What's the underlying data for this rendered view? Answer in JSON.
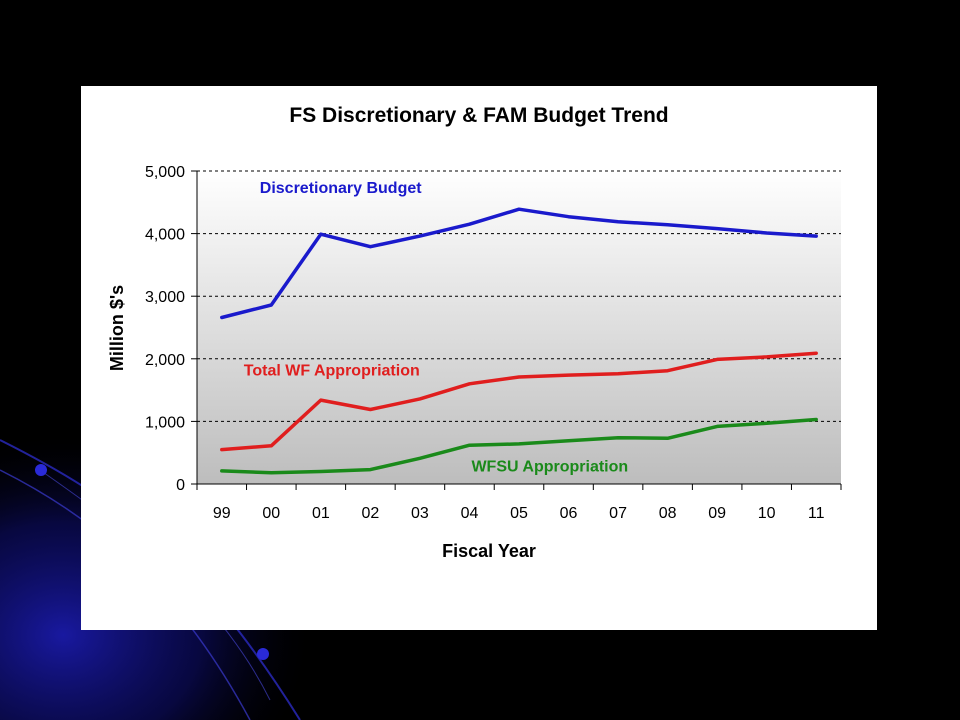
{
  "colors": {
    "background": "#000000",
    "plot_fill_top": "#ffffff",
    "plot_fill_bottom": "#bdbdbd",
    "gridline": "#000000",
    "decoration": "#1a1aa8"
  },
  "chart_data": {
    "type": "line",
    "title": "FS Discretionary & FAM Budget Trend",
    "xlabel": "Fiscal Year",
    "ylabel": "Million $'s",
    "categories": [
      "99",
      "00",
      "01",
      "02",
      "03",
      "04",
      "05",
      "06",
      "07",
      "08",
      "09",
      "10",
      "11"
    ],
    "ylim": [
      0,
      5000
    ],
    "yticks": [
      0,
      1000,
      2000,
      3000,
      4000,
      5000
    ],
    "ytick_labels": [
      "0",
      "1,000",
      "2,000",
      "3,000",
      "4,000",
      "5,000"
    ],
    "grid": true,
    "series": [
      {
        "name": "Discretionary Budget",
        "color": "#1a1acc",
        "label_color": "#1a1acc",
        "values": [
          2660,
          2860,
          3990,
          3790,
          3960,
          4150,
          4390,
          4270,
          4190,
          4140,
          4080,
          4010,
          3960
        ]
      },
      {
        "name": "Total WF Appropriation",
        "color": "#e01e1e",
        "label_color": "#e01e1e",
        "values": [
          550,
          610,
          1340,
          1190,
          1360,
          1600,
          1710,
          1740,
          1760,
          1810,
          1990,
          2030,
          2090
        ]
      },
      {
        "name": "WFSU  Appropriation",
        "color": "#1a8a1a",
        "label_color": "#1a8a1a",
        "values": [
          210,
          180,
          200,
          230,
          410,
          620,
          640,
          690,
          740,
          730,
          920,
          970,
          1030
        ]
      }
    ]
  }
}
